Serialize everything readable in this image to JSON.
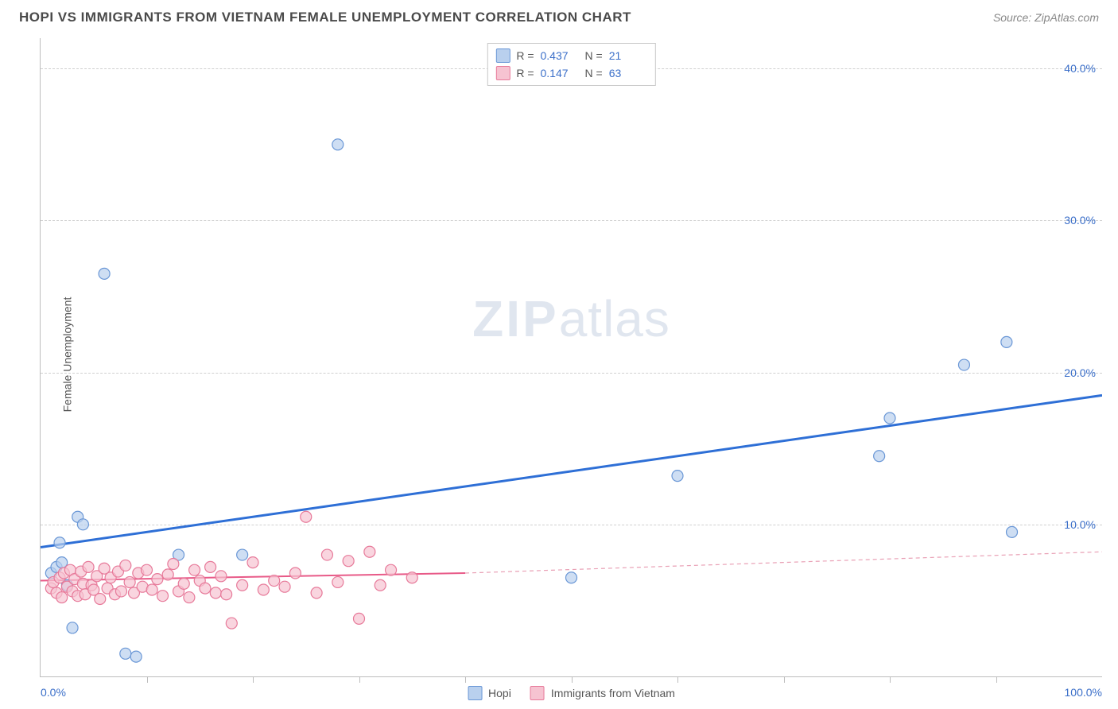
{
  "header": {
    "title": "HOPI VS IMMIGRANTS FROM VIETNAM FEMALE UNEMPLOYMENT CORRELATION CHART",
    "source": "Source: ZipAtlas.com"
  },
  "watermark_zip": "ZIP",
  "watermark_atlas": "atlas",
  "y_axis_label": "Female Unemployment",
  "chart": {
    "type": "scatter",
    "xlim": [
      0,
      100
    ],
    "ylim": [
      0,
      42
    ],
    "y_ticks": [
      {
        "v": 10,
        "label": "10.0%"
      },
      {
        "v": 20,
        "label": "20.0%"
      },
      {
        "v": 30,
        "label": "30.0%"
      },
      {
        "v": 40,
        "label": "40.0%"
      }
    ],
    "x_ticks_minor": [
      10,
      20,
      30,
      40,
      50,
      60,
      70,
      80,
      90
    ],
    "x_labels": [
      {
        "v": 0,
        "label": "0.0%",
        "align": "left"
      },
      {
        "v": 100,
        "label": "100.0%",
        "align": "right"
      }
    ],
    "grid_color": "#d0d0d0",
    "background_color": "#ffffff",
    "marker_radius": 7,
    "marker_stroke_width": 1.2,
    "series": [
      {
        "key": "hopi",
        "label": "Hopi",
        "fill": "#b9d0ee",
        "stroke": "#6a97d6",
        "points": [
          [
            1,
            6.8
          ],
          [
            1.5,
            7.2
          ],
          [
            1.8,
            8.8
          ],
          [
            2,
            7.5
          ],
          [
            2.5,
            6.0
          ],
          [
            3,
            3.2
          ],
          [
            3.5,
            10.5
          ],
          [
            4,
            10.0
          ],
          [
            6,
            26.5
          ],
          [
            8,
            1.5
          ],
          [
            9,
            1.3
          ],
          [
            13,
            8.0
          ],
          [
            19,
            8.0
          ],
          [
            28,
            35.0
          ],
          [
            60,
            13.2
          ],
          [
            79,
            14.5
          ],
          [
            80,
            17.0
          ],
          [
            87,
            20.5
          ],
          [
            91,
            22.0
          ],
          [
            91.5,
            9.5
          ],
          [
            50,
            6.5
          ]
        ],
        "trend": {
          "x1": 0,
          "y1": 8.5,
          "x2": 100,
          "y2": 18.5,
          "color": "#2e6fd6",
          "width": 3,
          "dash": null
        }
      },
      {
        "key": "vietnam",
        "label": "Immigrants from Vietnam",
        "fill": "#f6c3d1",
        "stroke": "#e77a9a",
        "points": [
          [
            1,
            5.8
          ],
          [
            1.2,
            6.2
          ],
          [
            1.5,
            5.5
          ],
          [
            1.8,
            6.5
          ],
          [
            2,
            5.2
          ],
          [
            2.2,
            6.8
          ],
          [
            2.5,
            5.9
          ],
          [
            2.8,
            7.0
          ],
          [
            3,
            5.6
          ],
          [
            3.2,
            6.4
          ],
          [
            3.5,
            5.3
          ],
          [
            3.8,
            6.9
          ],
          [
            4,
            6.1
          ],
          [
            4.2,
            5.4
          ],
          [
            4.5,
            7.2
          ],
          [
            4.8,
            6.0
          ],
          [
            5,
            5.7
          ],
          [
            5.3,
            6.6
          ],
          [
            5.6,
            5.1
          ],
          [
            6,
            7.1
          ],
          [
            6.3,
            5.8
          ],
          [
            6.6,
            6.5
          ],
          [
            7,
            5.4
          ],
          [
            7.3,
            6.9
          ],
          [
            7.6,
            5.6
          ],
          [
            8,
            7.3
          ],
          [
            8.4,
            6.2
          ],
          [
            8.8,
            5.5
          ],
          [
            9.2,
            6.8
          ],
          [
            9.6,
            5.9
          ],
          [
            10,
            7.0
          ],
          [
            10.5,
            5.7
          ],
          [
            11,
            6.4
          ],
          [
            11.5,
            5.3
          ],
          [
            12,
            6.7
          ],
          [
            12.5,
            7.4
          ],
          [
            13,
            5.6
          ],
          [
            13.5,
            6.1
          ],
          [
            14,
            5.2
          ],
          [
            14.5,
            7.0
          ],
          [
            15,
            6.3
          ],
          [
            15.5,
            5.8
          ],
          [
            16,
            7.2
          ],
          [
            16.5,
            5.5
          ],
          [
            17,
            6.6
          ],
          [
            17.5,
            5.4
          ],
          [
            18,
            3.5
          ],
          [
            19,
            6.0
          ],
          [
            20,
            7.5
          ],
          [
            21,
            5.7
          ],
          [
            22,
            6.3
          ],
          [
            23,
            5.9
          ],
          [
            24,
            6.8
          ],
          [
            25,
            10.5
          ],
          [
            26,
            5.5
          ],
          [
            27,
            8.0
          ],
          [
            28,
            6.2
          ],
          [
            29,
            7.6
          ],
          [
            30,
            3.8
          ],
          [
            31,
            8.2
          ],
          [
            32,
            6.0
          ],
          [
            33,
            7.0
          ],
          [
            35,
            6.5
          ]
        ],
        "trend": {
          "x1": 0,
          "y1": 6.3,
          "x2": 40,
          "y2": 6.8,
          "color": "#e85a88",
          "width": 2,
          "dash": null
        },
        "trend_ext": {
          "x1": 40,
          "y1": 6.8,
          "x2": 100,
          "y2": 8.2,
          "color": "#e9a0b5",
          "width": 1.2,
          "dash": "5,4"
        }
      }
    ],
    "top_legend": [
      {
        "swatch_fill": "#b9d0ee",
        "swatch_stroke": "#6a97d6",
        "r_label": "R =",
        "r_val": "0.437",
        "n_label": "N =",
        "n_val": "21"
      },
      {
        "swatch_fill": "#f6c3d1",
        "swatch_stroke": "#e77a9a",
        "r_label": "R =",
        "r_val": "0.147",
        "n_label": "N =",
        "n_val": "63"
      }
    ]
  }
}
